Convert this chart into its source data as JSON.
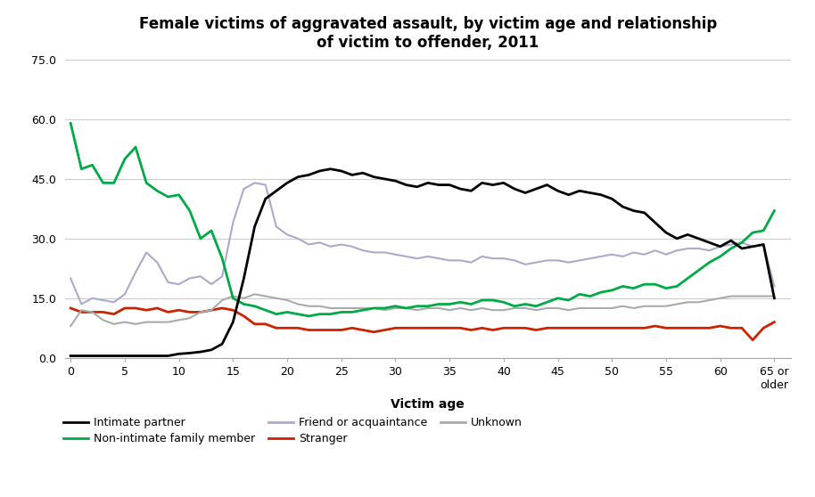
{
  "title": "Female victims of aggravated assault, by victim age and relationship\nof victim to offender, 2011",
  "xlabel": "Victim age",
  "xtick_labels": [
    "0",
    "5",
    "10",
    "15",
    "20",
    "25",
    "30",
    "35",
    "40",
    "45",
    "50",
    "55",
    "60",
    "65 or\nolder"
  ],
  "xtick_positions": [
    0,
    5,
    10,
    15,
    20,
    25,
    30,
    35,
    40,
    45,
    50,
    55,
    60,
    65
  ],
  "ytick_values": [
    0.0,
    15.0,
    30.0,
    45.0,
    60.0,
    75.0
  ],
  "ylim": [
    0,
    75
  ],
  "series": {
    "intimate_partner": {
      "label": "Intimate partner",
      "color": "#000000",
      "linewidth": 2.0,
      "x": [
        0,
        1,
        2,
        3,
        4,
        5,
        6,
        7,
        8,
        9,
        10,
        11,
        12,
        13,
        14,
        15,
        16,
        17,
        18,
        19,
        20,
        21,
        22,
        23,
        24,
        25,
        26,
        27,
        28,
        29,
        30,
        31,
        32,
        33,
        34,
        35,
        36,
        37,
        38,
        39,
        40,
        41,
        42,
        43,
        44,
        45,
        46,
        47,
        48,
        49,
        50,
        51,
        52,
        53,
        54,
        55,
        56,
        57,
        58,
        59,
        60,
        61,
        62,
        63,
        64,
        65
      ],
      "y": [
        0.5,
        0.5,
        0.5,
        0.5,
        0.5,
        0.5,
        0.5,
        0.5,
        0.5,
        0.5,
        1.0,
        1.2,
        1.5,
        2.0,
        3.5,
        9.0,
        20.0,
        33.0,
        40.0,
        42.0,
        44.0,
        45.5,
        46.0,
        47.0,
        47.5,
        47.0,
        46.0,
        46.5,
        45.5,
        45.0,
        44.5,
        43.5,
        43.0,
        44.0,
        43.5,
        43.5,
        42.5,
        42.0,
        44.0,
        43.5,
        44.0,
        42.5,
        41.5,
        42.5,
        43.5,
        42.0,
        41.0,
        42.0,
        41.5,
        41.0,
        40.0,
        38.0,
        37.0,
        36.5,
        34.0,
        31.5,
        30.0,
        31.0,
        30.0,
        29.0,
        28.0,
        29.5,
        27.5,
        28.0,
        28.5,
        15.0
      ]
    },
    "non_intimate_family": {
      "label": "Non-intimate family member",
      "color": "#00aa44",
      "linewidth": 2.0,
      "x": [
        0,
        1,
        2,
        3,
        4,
        5,
        6,
        7,
        8,
        9,
        10,
        11,
        12,
        13,
        14,
        15,
        16,
        17,
        18,
        19,
        20,
        21,
        22,
        23,
        24,
        25,
        26,
        27,
        28,
        29,
        30,
        31,
        32,
        33,
        34,
        35,
        36,
        37,
        38,
        39,
        40,
        41,
        42,
        43,
        44,
        45,
        46,
        47,
        48,
        49,
        50,
        51,
        52,
        53,
        54,
        55,
        56,
        57,
        58,
        59,
        60,
        61,
        62,
        63,
        64,
        65
      ],
      "y": [
        59.0,
        47.5,
        48.5,
        44.0,
        44.0,
        50.0,
        53.0,
        44.0,
        42.0,
        40.5,
        41.0,
        37.0,
        30.0,
        32.0,
        25.0,
        15.0,
        13.5,
        13.0,
        12.0,
        11.0,
        11.5,
        11.0,
        10.5,
        11.0,
        11.0,
        11.5,
        11.5,
        12.0,
        12.5,
        12.5,
        13.0,
        12.5,
        13.0,
        13.0,
        13.5,
        13.5,
        14.0,
        13.5,
        14.5,
        14.5,
        14.0,
        13.0,
        13.5,
        13.0,
        14.0,
        15.0,
        14.5,
        16.0,
        15.5,
        16.5,
        17.0,
        18.0,
        17.5,
        18.5,
        18.5,
        17.5,
        18.0,
        20.0,
        22.0,
        24.0,
        25.5,
        27.5,
        29.0,
        31.5,
        32.0,
        37.0
      ]
    },
    "friend_acquaintance": {
      "label": "Friend or acquaintance",
      "color": "#aaaacc",
      "linewidth": 1.5,
      "x": [
        0,
        1,
        2,
        3,
        4,
        5,
        6,
        7,
        8,
        9,
        10,
        11,
        12,
        13,
        14,
        15,
        16,
        17,
        18,
        19,
        20,
        21,
        22,
        23,
        24,
        25,
        26,
        27,
        28,
        29,
        30,
        31,
        32,
        33,
        34,
        35,
        36,
        37,
        38,
        39,
        40,
        41,
        42,
        43,
        44,
        45,
        46,
        47,
        48,
        49,
        50,
        51,
        52,
        53,
        54,
        55,
        56,
        57,
        58,
        59,
        60,
        61,
        62,
        63,
        64,
        65
      ],
      "y": [
        20.0,
        13.5,
        15.0,
        14.5,
        14.0,
        16.0,
        21.5,
        26.5,
        24.0,
        19.0,
        18.5,
        20.0,
        20.5,
        18.5,
        20.5,
        34.0,
        42.5,
        44.0,
        43.5,
        33.0,
        31.0,
        30.0,
        28.5,
        29.0,
        28.0,
        28.5,
        28.0,
        27.0,
        26.5,
        26.5,
        26.0,
        25.5,
        25.0,
        25.5,
        25.0,
        24.5,
        24.5,
        24.0,
        25.5,
        25.0,
        25.0,
        24.5,
        23.5,
        24.0,
        24.5,
        24.5,
        24.0,
        24.5,
        25.0,
        25.5,
        26.0,
        25.5,
        26.5,
        26.0,
        27.0,
        26.0,
        27.0,
        27.5,
        27.5,
        27.0,
        28.0,
        28.5,
        29.0,
        28.0,
        28.5,
        18.0
      ]
    },
    "stranger": {
      "label": "Stranger",
      "color": "#cc2200",
      "linewidth": 2.0,
      "x": [
        0,
        1,
        2,
        3,
        4,
        5,
        6,
        7,
        8,
        9,
        10,
        11,
        12,
        13,
        14,
        15,
        16,
        17,
        18,
        19,
        20,
        21,
        22,
        23,
        24,
        25,
        26,
        27,
        28,
        29,
        30,
        31,
        32,
        33,
        34,
        35,
        36,
        37,
        38,
        39,
        40,
        41,
        42,
        43,
        44,
        45,
        46,
        47,
        48,
        49,
        50,
        51,
        52,
        53,
        54,
        55,
        56,
        57,
        58,
        59,
        60,
        61,
        62,
        63,
        64,
        65
      ],
      "y": [
        12.5,
        11.5,
        11.5,
        11.5,
        11.0,
        12.5,
        12.5,
        12.0,
        12.5,
        11.5,
        12.0,
        11.5,
        11.5,
        12.0,
        12.5,
        12.0,
        10.5,
        8.5,
        8.5,
        7.5,
        7.5,
        7.5,
        7.0,
        7.0,
        7.0,
        7.0,
        7.5,
        7.0,
        6.5,
        7.0,
        7.5,
        7.5,
        7.5,
        7.5,
        7.5,
        7.5,
        7.5,
        7.0,
        7.5,
        7.0,
        7.5,
        7.5,
        7.5,
        7.0,
        7.5,
        7.5,
        7.5,
        7.5,
        7.5,
        7.5,
        7.5,
        7.5,
        7.5,
        7.5,
        8.0,
        7.5,
        7.5,
        7.5,
        7.5,
        7.5,
        8.0,
        7.5,
        7.5,
        4.5,
        7.5,
        9.0
      ]
    },
    "unknown": {
      "label": "Unknown",
      "color": "#aaaaaa",
      "linewidth": 1.5,
      "x": [
        0,
        1,
        2,
        3,
        4,
        5,
        6,
        7,
        8,
        9,
        10,
        11,
        12,
        13,
        14,
        15,
        16,
        17,
        18,
        19,
        20,
        21,
        22,
        23,
        24,
        25,
        26,
        27,
        28,
        29,
        30,
        31,
        32,
        33,
        34,
        35,
        36,
        37,
        38,
        39,
        40,
        41,
        42,
        43,
        44,
        45,
        46,
        47,
        48,
        49,
        50,
        51,
        52,
        53,
        54,
        55,
        56,
        57,
        58,
        59,
        60,
        61,
        62,
        63,
        64,
        65
      ],
      "y": [
        8.0,
        12.0,
        11.5,
        9.5,
        8.5,
        9.0,
        8.5,
        9.0,
        9.0,
        9.0,
        9.5,
        10.0,
        11.5,
        12.0,
        14.5,
        15.5,
        15.0,
        16.0,
        15.5,
        15.0,
        14.5,
        13.5,
        13.0,
        13.0,
        12.5,
        12.5,
        12.5,
        12.5,
        12.5,
        12.0,
        12.5,
        12.5,
        12.0,
        12.5,
        12.5,
        12.0,
        12.5,
        12.0,
        12.5,
        12.0,
        12.0,
        12.5,
        12.5,
        12.0,
        12.5,
        12.5,
        12.0,
        12.5,
        12.5,
        12.5,
        12.5,
        13.0,
        12.5,
        13.0,
        13.0,
        13.0,
        13.5,
        14.0,
        14.0,
        14.5,
        15.0,
        15.5,
        15.5,
        15.5,
        15.5,
        15.5
      ]
    }
  },
  "legend_rows": [
    [
      {
        "label": "Intimate partner",
        "color": "#000000"
      },
      {
        "label": "Non-intimate family member",
        "color": "#00aa44"
      },
      {
        "label": "Friend or acquaintance",
        "color": "#aaaacc"
      }
    ],
    [
      {
        "label": "Stranger",
        "color": "#cc2200"
      },
      {
        "label": "Unknown",
        "color": "#aaaaaa"
      }
    ]
  ],
  "background_color": "#ffffff",
  "grid_color": "#cccccc"
}
